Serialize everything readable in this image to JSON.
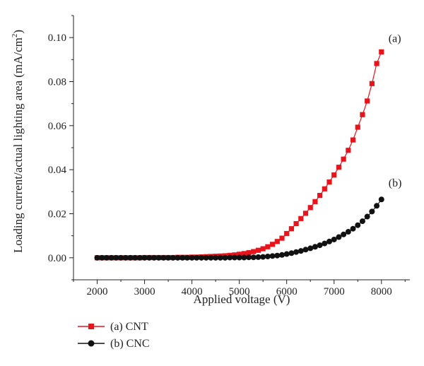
{
  "chart_data": {
    "type": "scatter",
    "xlabel": "Applied voltage (V)",
    "ylabel": "Loading current/actual lighting area (mA/cm",
    "ylabel_superscript": "2",
    "ylabel_suffix": ")",
    "xlim": [
      1500,
      8600
    ],
    "ylim": [
      -0.01,
      0.11
    ],
    "x_ticks": [
      2000,
      3000,
      4000,
      5000,
      6000,
      7000,
      8000
    ],
    "x_tick_labels": [
      "2000",
      "3000",
      "4000",
      "5000",
      "6000",
      "7000",
      "8000"
    ],
    "y_ticks": [
      0.0,
      0.02,
      0.04,
      0.06,
      0.08,
      0.1
    ],
    "y_tick_labels": [
      "0.00",
      "0.02",
      "0.04",
      "0.06",
      "0.08",
      "0.10"
    ],
    "grid": false,
    "legend_placement": "bottom-left, below plot",
    "series": [
      {
        "name": "(a) CNT",
        "marker_label": "(a)",
        "color": "#e8141b",
        "marker": "square",
        "x": [
          2000,
          2100,
          2200,
          2300,
          2400,
          2500,
          2600,
          2700,
          2800,
          2900,
          3000,
          3100,
          3200,
          3300,
          3400,
          3500,
          3600,
          3700,
          3800,
          3900,
          4000,
          4100,
          4200,
          4300,
          4400,
          4500,
          4600,
          4700,
          4800,
          4900,
          5000,
          5100,
          5200,
          5300,
          5400,
          5500,
          5600,
          5700,
          5800,
          5900,
          6000,
          6100,
          6200,
          6300,
          6400,
          6500,
          6600,
          6700,
          6800,
          6900,
          7000,
          7100,
          7200,
          7300,
          7400,
          7500,
          7600,
          7700,
          7800,
          7900,
          8000
        ],
        "y": [
          0.0,
          0.0,
          0.0,
          0.0,
          0.0,
          0.0,
          0.0,
          0.0,
          0.0,
          0.0,
          0.0001,
          0.0001,
          0.0001,
          0.0001,
          0.0001,
          0.0001,
          0.0001,
          0.0002,
          0.0002,
          0.0002,
          0.0003,
          0.0003,
          0.0004,
          0.0005,
          0.0006,
          0.0007,
          0.0008,
          0.0009,
          0.0011,
          0.0013,
          0.0016,
          0.0019,
          0.0023,
          0.0028,
          0.0034,
          0.0041,
          0.005,
          0.0061,
          0.0074,
          0.0089,
          0.011,
          0.0132,
          0.0155,
          0.0178,
          0.0202,
          0.0228,
          0.0255,
          0.0283,
          0.0313,
          0.0344,
          0.0376,
          0.0411,
          0.0448,
          0.0488,
          0.0535,
          0.0593,
          0.065,
          0.0712,
          0.0791,
          0.0882,
          0.0935
        ]
      },
      {
        "name": "(b) CNC",
        "marker_label": "(b)",
        "color": "#111111",
        "marker": "circle",
        "x": [
          2000,
          2100,
          2200,
          2300,
          2400,
          2500,
          2600,
          2700,
          2800,
          2900,
          3000,
          3100,
          3200,
          3300,
          3400,
          3500,
          3600,
          3700,
          3800,
          3900,
          4000,
          4100,
          4200,
          4300,
          4400,
          4500,
          4600,
          4700,
          4800,
          4900,
          5000,
          5100,
          5200,
          5300,
          5400,
          5500,
          5600,
          5700,
          5800,
          5900,
          6000,
          6100,
          6200,
          6300,
          6400,
          6500,
          6600,
          6700,
          6800,
          6900,
          7000,
          7100,
          7200,
          7300,
          7400,
          7500,
          7600,
          7700,
          7800,
          7900,
          8000
        ],
        "y": [
          0.0,
          0.0,
          0.0,
          0.0,
          0.0,
          0.0,
          0.0,
          0.0,
          0.0,
          0.0,
          0.0,
          0.0,
          0.0,
          0.0,
          0.0,
          0.0,
          0.0,
          0.0,
          0.0,
          0.0,
          0.0,
          0.0,
          0.0,
          0.0,
          0.0,
          0.0,
          0.0,
          0.0,
          0.0001,
          0.0001,
          0.0001,
          0.0001,
          0.0002,
          0.0002,
          0.0003,
          0.0004,
          0.0006,
          0.0008,
          0.001,
          0.0013,
          0.0017,
          0.0021,
          0.0026,
          0.0031,
          0.0037,
          0.0043,
          0.005,
          0.0057,
          0.0065,
          0.0074,
          0.0083,
          0.0094,
          0.0106,
          0.0118,
          0.0132,
          0.0148,
          0.0166,
          0.0187,
          0.021,
          0.0236,
          0.0265
        ]
      }
    ]
  }
}
